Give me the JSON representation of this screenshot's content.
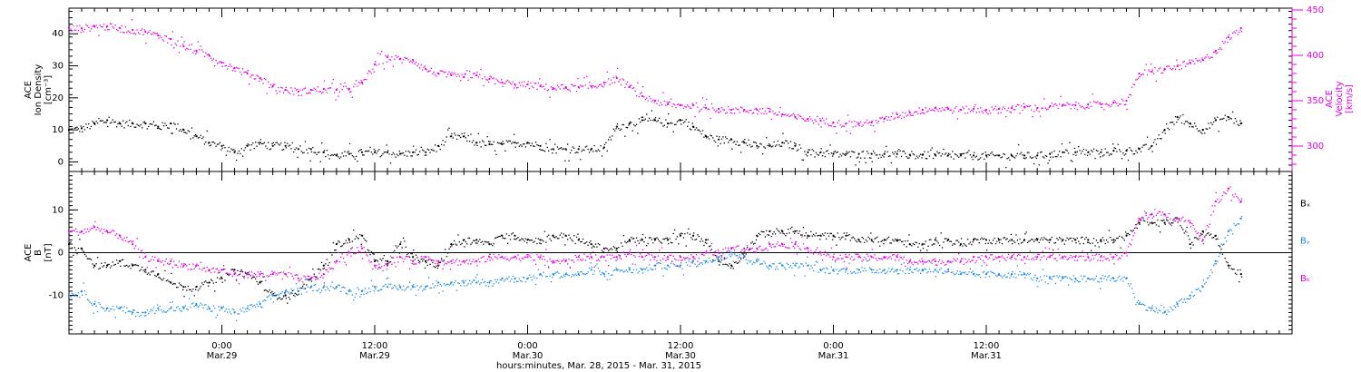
{
  "colors": {
    "black": "#000000",
    "magenta": "#e600e6",
    "blue": "#1a8ce6"
  },
  "chart_data": [
    {
      "type": "scatter",
      "panel": "top",
      "y_left": {
        "label_lines": [
          "ACE",
          "Ion Density",
          "[cm⁻³]"
        ],
        "lim": [
          -3,
          48
        ],
        "ticks": [
          0,
          10,
          20,
          30,
          40
        ],
        "tick_labels": [
          "0",
          "10",
          "20",
          "30",
          "40"
        ]
      },
      "y_right": {
        "label_lines": [
          "ACE",
          "Velocity",
          "[km/s]"
        ],
        "lim": [
          272,
          452
        ],
        "ticks": [
          300,
          350,
          400,
          450
        ],
        "tick_labels": [
          "300",
          "350",
          "400",
          "450"
        ]
      },
      "series": [
        {
          "key": "density",
          "axis": "left",
          "color": "black",
          "x_hours": [
            0,
            1,
            2,
            3,
            4,
            5,
            6,
            7,
            8,
            9,
            10,
            11,
            12,
            13,
            14,
            15,
            16,
            17,
            18,
            19,
            20,
            21,
            22,
            23,
            24,
            25,
            26,
            27,
            28,
            29,
            30,
            31,
            32,
            33,
            34,
            35,
            36,
            37,
            38,
            39,
            40,
            41,
            42,
            43,
            44,
            45,
            46,
            47,
            48,
            49,
            50,
            51,
            52,
            53,
            54,
            55,
            56,
            57,
            58,
            59,
            60,
            61,
            62,
            63,
            64,
            65,
            66,
            67,
            68,
            69,
            70,
            71,
            72,
            73,
            74,
            75,
            76,
            77,
            78,
            79,
            80,
            81,
            82,
            83,
            84,
            85,
            86,
            87,
            88,
            89,
            90,
            91,
            92
          ],
          "values": [
            10,
            10.5,
            12,
            13,
            12,
            12,
            12,
            11,
            12,
            10,
            8,
            6,
            5,
            3,
            5,
            6,
            5,
            5,
            4,
            4,
            3,
            2,
            2.5,
            3,
            3,
            3,
            2.5,
            3,
            3,
            5,
            8,
            8,
            6,
            5.5,
            5.5,
            6,
            6,
            5,
            4,
            4,
            4,
            4,
            4.5,
            11,
            12,
            13,
            13,
            12,
            13,
            11,
            8,
            7,
            7,
            6,
            5,
            5,
            6,
            5,
            3,
            3,
            2.5,
            2.5,
            2.5,
            2.5,
            2.5,
            2.5,
            2.2,
            2.2,
            2.2,
            2,
            2,
            2,
            2,
            2,
            2,
            2,
            2,
            2.5,
            3,
            3,
            3,
            3,
            3.5,
            3.5,
            4,
            5,
            10,
            14,
            12,
            10,
            13,
            14,
            12
          ]
        },
        {
          "key": "velocity",
          "axis": "right",
          "color": "magenta",
          "x_hours": [
            0,
            1,
            2,
            3,
            4,
            5,
            6,
            7,
            8,
            9,
            10,
            11,
            12,
            13,
            14,
            15,
            16,
            17,
            18,
            19,
            20,
            21,
            22,
            23,
            24,
            25,
            26,
            27,
            28,
            29,
            30,
            31,
            32,
            33,
            34,
            35,
            36,
            37,
            38,
            39,
            40,
            41,
            42,
            43,
            44,
            45,
            46,
            47,
            48,
            49,
            50,
            51,
            52,
            53,
            54,
            55,
            56,
            57,
            58,
            59,
            60,
            61,
            62,
            63,
            64,
            65,
            66,
            67,
            68,
            69,
            70,
            71,
            72,
            73,
            74,
            75,
            76,
            77,
            78,
            79,
            80,
            81,
            82,
            83,
            84,
            85,
            86,
            87,
            88,
            89,
            90,
            91,
            92
          ],
          "values": [
            430,
            430,
            432,
            432,
            430,
            428,
            426,
            422,
            418,
            410,
            405,
            400,
            392,
            386,
            380,
            375,
            366,
            362,
            360,
            362,
            363,
            362,
            363,
            370,
            390,
            398,
            396,
            395,
            385,
            380,
            378,
            376,
            378,
            374,
            370,
            368,
            368,
            366,
            364,
            365,
            365,
            366,
            370,
            375,
            365,
            355,
            350,
            346,
            345,
            345,
            342,
            341,
            340,
            340,
            340,
            338,
            335,
            332,
            330,
            328,
            326,
            325,
            325,
            326,
            330,
            335,
            337,
            340,
            342,
            341,
            340,
            341,
            340,
            341,
            342,
            343,
            342,
            344,
            345,
            345,
            346,
            346,
            348,
            350,
            380,
            382,
            385,
            388,
            392,
            395,
            405,
            420,
            430
          ]
        }
      ]
    },
    {
      "type": "scatter",
      "panel": "bottom",
      "y_left": {
        "label_lines": [
          "ACE",
          "B",
          "[nT]"
        ],
        "lim": [
          -19,
          19
        ],
        "ticks": [
          -10,
          0,
          10
        ],
        "tick_labels": [
          "-10",
          "0",
          "10"
        ]
      },
      "zero_line": true,
      "legend": [
        "Bₓ",
        "Bᵧ",
        "Bₖ"
      ],
      "series": [
        {
          "key": "bx",
          "color": "black",
          "x_hours": [
            0,
            1,
            2,
            3,
            4,
            5,
            6,
            7,
            8,
            9,
            10,
            11,
            12,
            13,
            14,
            15,
            16,
            17,
            18,
            19,
            20,
            21,
            22,
            23,
            24,
            25,
            26,
            27,
            28,
            29,
            30,
            31,
            32,
            33,
            34,
            35,
            36,
            37,
            38,
            39,
            40,
            41,
            42,
            43,
            44,
            45,
            46,
            47,
            48,
            49,
            50,
            51,
            52,
            53,
            54,
            55,
            56,
            57,
            58,
            59,
            60,
            61,
            62,
            63,
            64,
            65,
            66,
            67,
            68,
            69,
            70,
            71,
            72,
            73,
            74,
            75,
            76,
            77,
            78,
            79,
            80,
            81,
            82,
            83,
            84,
            85,
            86,
            87,
            88,
            89,
            90,
            91,
            92
          ],
          "values": [
            2,
            1,
            -3,
            -3,
            -2,
            -3,
            -4,
            -5,
            -7,
            -8,
            -8,
            -7,
            -6,
            -4,
            -5,
            -7,
            -10,
            -10,
            -9,
            -6,
            -3,
            2,
            3,
            4,
            -2,
            -2,
            2,
            -1,
            -2,
            -3,
            2,
            3,
            3,
            2,
            4,
            4,
            3,
            3,
            4,
            4,
            3,
            2,
            1,
            1,
            3,
            3,
            3,
            3,
            4,
            4,
            3,
            -2,
            -3,
            0,
            4,
            5,
            5,
            5,
            4,
            4,
            4,
            4,
            3,
            3,
            3,
            3,
            2,
            2,
            3,
            3,
            2,
            3,
            3,
            3,
            3,
            3,
            3,
            3,
            3,
            3,
            3,
            3,
            3,
            4,
            7,
            7,
            7,
            8,
            2,
            5,
            4,
            -3,
            -5
          ]
        },
        {
          "key": "by",
          "color": "blue",
          "x_hours": [
            0,
            1,
            2,
            3,
            4,
            5,
            6,
            7,
            8,
            9,
            10,
            11,
            12,
            13,
            14,
            15,
            16,
            17,
            18,
            19,
            20,
            21,
            22,
            23,
            24,
            25,
            26,
            27,
            28,
            29,
            30,
            31,
            32,
            33,
            34,
            35,
            36,
            37,
            38,
            39,
            40,
            41,
            42,
            43,
            44,
            45,
            46,
            47,
            48,
            49,
            50,
            51,
            52,
            53,
            54,
            55,
            56,
            57,
            58,
            59,
            60,
            61,
            62,
            63,
            64,
            65,
            66,
            67,
            68,
            69,
            70,
            71,
            72,
            73,
            74,
            75,
            76,
            77,
            78,
            79,
            80,
            81,
            82,
            83,
            84,
            85,
            86,
            87,
            88,
            89,
            90,
            91,
            92
          ],
          "values": [
            -10,
            -9,
            -12,
            -13,
            -13,
            -14,
            -14,
            -13,
            -13,
            -13,
            -12,
            -13,
            -13,
            -14,
            -13,
            -12,
            -10,
            -9,
            -9,
            -8,
            -8,
            -8,
            -9,
            -9,
            -8,
            -8,
            -8,
            -8,
            -8,
            -7,
            -7,
            -7,
            -7,
            -7,
            -6,
            -6,
            -6,
            -5,
            -5,
            -5,
            -5,
            -4,
            -5,
            -4,
            -4,
            -4,
            -3,
            -3,
            -3,
            -2,
            -2,
            -1,
            0,
            -1,
            -2,
            -3,
            -3,
            -3,
            -3,
            -4,
            -4,
            -4,
            -4,
            -4,
            -4,
            -4,
            -4,
            -4,
            -4,
            -4,
            -5,
            -5,
            -5,
            -5,
            -5,
            -5,
            -6,
            -6,
            -6,
            -6,
            -6,
            -6,
            -6,
            -6,
            -12,
            -13,
            -14,
            -12,
            -10,
            -8,
            -2,
            5,
            8
          ]
        },
        {
          "key": "bz",
          "color": "magenta",
          "x_hours": [
            0,
            1,
            2,
            3,
            4,
            5,
            6,
            7,
            8,
            9,
            10,
            11,
            12,
            13,
            14,
            15,
            16,
            17,
            18,
            19,
            20,
            21,
            22,
            23,
            24,
            25,
            26,
            27,
            28,
            29,
            30,
            31,
            32,
            33,
            34,
            35,
            36,
            37,
            38,
            39,
            40,
            41,
            42,
            43,
            44,
            45,
            46,
            47,
            48,
            49,
            50,
            51,
            52,
            53,
            54,
            55,
            56,
            57,
            58,
            59,
            60,
            61,
            62,
            63,
            64,
            65,
            66,
            67,
            68,
            69,
            70,
            71,
            72,
            73,
            74,
            75,
            76,
            77,
            78,
            79,
            80,
            81,
            82,
            83,
            84,
            85,
            86,
            87,
            88,
            89,
            90,
            91,
            92
          ],
          "values": [
            5,
            5,
            6,
            5,
            4,
            2,
            -1,
            -2,
            -2,
            -3,
            -3,
            -4,
            -4,
            -5,
            -5,
            -5,
            -5,
            -5,
            -6,
            -6,
            -5,
            -2,
            0,
            1,
            -3,
            -3,
            -1,
            -2,
            -1,
            -2,
            -2,
            -2,
            -2,
            -1,
            -1,
            -1,
            -1,
            -1,
            -2,
            -2,
            -1,
            -1,
            -1,
            -1,
            0,
            -1,
            -1,
            -1,
            -1,
            -1,
            0,
            0,
            1,
            1,
            1,
            2,
            2,
            2,
            1,
            0,
            -1,
            -1,
            -1,
            -1,
            -1,
            -1,
            -2,
            -2,
            -2,
            -2,
            -2,
            -1,
            -1,
            -1,
            -1,
            -1,
            -1,
            -1,
            -1,
            -1,
            -1,
            -1,
            -1,
            0,
            8,
            9,
            9,
            8,
            7,
            3,
            12,
            15,
            12
          ]
        }
      ]
    },
    {
      "type": "time-axis",
      "x_range_hours": [
        -12,
        84
      ],
      "x_hour_offset": -12,
      "major_ticks": [
        {
          "hour": 0,
          "time": "0:00",
          "date": "Mar.29"
        },
        {
          "hour": 12,
          "time": "12:00",
          "date": "Mar.29"
        },
        {
          "hour": 24,
          "time": "0:00",
          "date": "Mar.30"
        },
        {
          "hour": 36,
          "time": "12:00",
          "date": "Mar.30"
        },
        {
          "hour": 48,
          "time": "0:00",
          "date": "Mar.31"
        },
        {
          "hour": 60,
          "time": "12:00",
          "date": "Mar.31"
        }
      ],
      "xlabel": "hours:minutes, Mar. 28, 2015 - Mar. 31, 2015"
    }
  ]
}
